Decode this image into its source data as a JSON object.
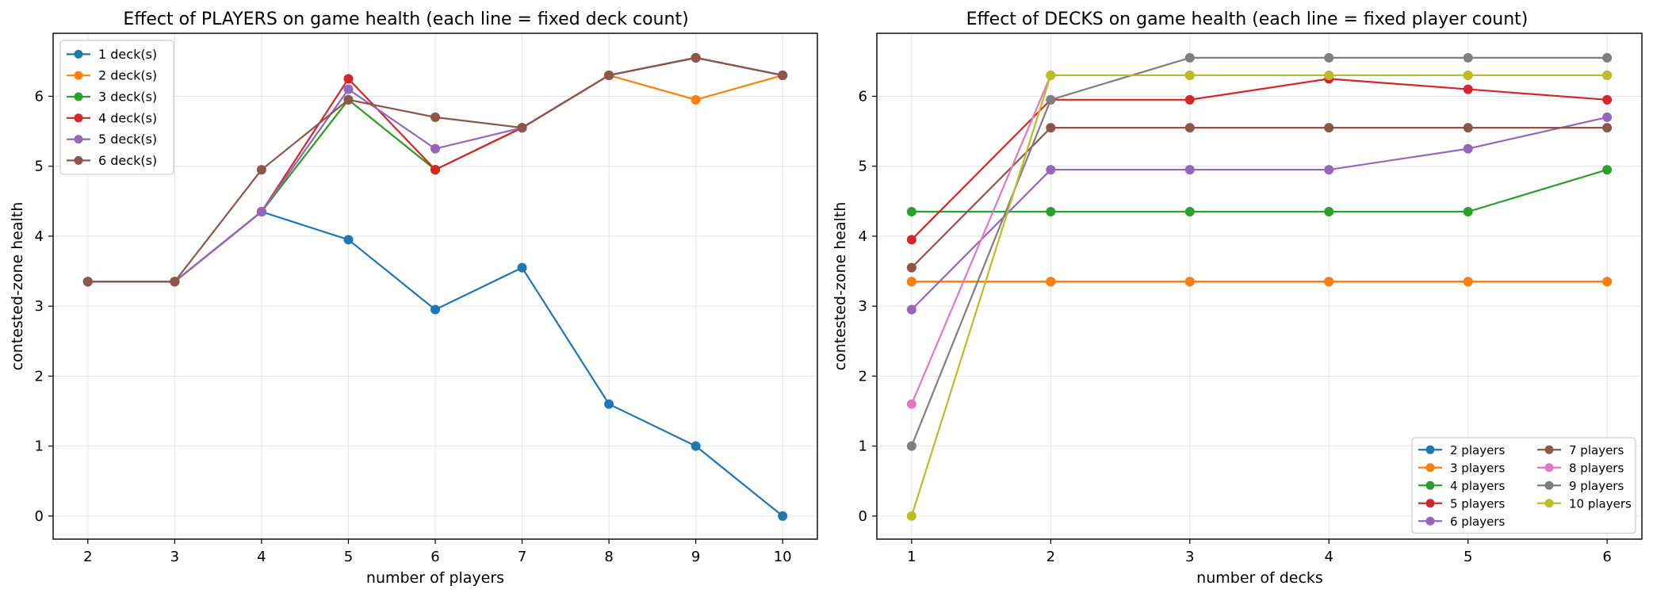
{
  "chart_data": [
    {
      "type": "line",
      "title": "Effect of PLAYERS on game health (each line = fixed deck count)",
      "xlabel": "number of players",
      "ylabel": "contested-zone health",
      "x": [
        2,
        3,
        4,
        5,
        6,
        7,
        8,
        9,
        10
      ],
      "xlim": [
        1.6,
        10.4
      ],
      "ylim": [
        -0.33,
        6.9
      ],
      "xticks": [
        2,
        3,
        4,
        5,
        6,
        7,
        8,
        9,
        10
      ],
      "yticks": [
        0,
        1,
        2,
        3,
        4,
        5,
        6
      ],
      "grid": true,
      "legend_position": "upper-left",
      "legend_columns": 1,
      "series": [
        {
          "name": "1 deck(s)",
          "color": "#1f77b4",
          "values": [
            3.35,
            3.35,
            4.35,
            3.95,
            2.95,
            3.55,
            1.6,
            1.0,
            0.0
          ]
        },
        {
          "name": "2 deck(s)",
          "color": "#ff7f0e",
          "values": [
            3.35,
            3.35,
            4.35,
            5.95,
            4.95,
            5.55,
            6.3,
            5.95,
            6.3
          ]
        },
        {
          "name": "3 deck(s)",
          "color": "#2ca02c",
          "values": [
            3.35,
            3.35,
            4.35,
            5.95,
            4.95,
            5.55,
            6.3,
            6.55,
            6.3
          ]
        },
        {
          "name": "4 deck(s)",
          "color": "#d62728",
          "values": [
            3.35,
            3.35,
            4.35,
            6.25,
            4.95,
            5.55,
            6.3,
            6.55,
            6.3
          ]
        },
        {
          "name": "5 deck(s)",
          "color": "#9467bd",
          "values": [
            3.35,
            3.35,
            4.35,
            6.1,
            5.25,
            5.55,
            6.3,
            6.55,
            6.3
          ]
        },
        {
          "name": "6 deck(s)",
          "color": "#8c564b",
          "values": [
            3.35,
            3.35,
            4.95,
            5.95,
            5.7,
            5.55,
            6.3,
            6.55,
            6.3
          ]
        }
      ]
    },
    {
      "type": "line",
      "title": "Effect of DECKS on game health (each line = fixed player count)",
      "xlabel": "number of decks",
      "ylabel": "contested-zone health",
      "x": [
        1,
        2,
        3,
        4,
        5,
        6
      ],
      "xlim": [
        0.75,
        6.25
      ],
      "ylim": [
        -0.33,
        6.9
      ],
      "xticks": [
        1,
        2,
        3,
        4,
        5,
        6
      ],
      "yticks": [
        0,
        1,
        2,
        3,
        4,
        5,
        6
      ],
      "grid": true,
      "legend_position": "lower-right",
      "legend_columns": 2,
      "series": [
        {
          "name": "2 players",
          "color": "#1f77b4",
          "values": [
            3.35,
            3.35,
            3.35,
            3.35,
            3.35,
            3.35
          ]
        },
        {
          "name": "3 players",
          "color": "#ff7f0e",
          "values": [
            3.35,
            3.35,
            3.35,
            3.35,
            3.35,
            3.35
          ]
        },
        {
          "name": "4 players",
          "color": "#2ca02c",
          "values": [
            4.35,
            4.35,
            4.35,
            4.35,
            4.35,
            4.95
          ]
        },
        {
          "name": "5 players",
          "color": "#d62728",
          "values": [
            3.95,
            5.95,
            5.95,
            6.25,
            6.1,
            5.95
          ]
        },
        {
          "name": "6 players",
          "color": "#9467bd",
          "values": [
            2.95,
            4.95,
            4.95,
            4.95,
            5.25,
            5.7
          ]
        },
        {
          "name": "7 players",
          "color": "#8c564b",
          "values": [
            3.55,
            5.55,
            5.55,
            5.55,
            5.55,
            5.55
          ]
        },
        {
          "name": "8 players",
          "color": "#e377c2",
          "values": [
            1.6,
            6.3,
            6.3,
            6.3,
            6.3,
            6.3
          ]
        },
        {
          "name": "9 players",
          "color": "#7f7f7f",
          "values": [
            1.0,
            5.95,
            6.55,
            6.55,
            6.55,
            6.55
          ]
        },
        {
          "name": "10 players",
          "color": "#bcbd22",
          "values": [
            0.0,
            6.3,
            6.3,
            6.3,
            6.3,
            6.3
          ]
        }
      ]
    }
  ]
}
